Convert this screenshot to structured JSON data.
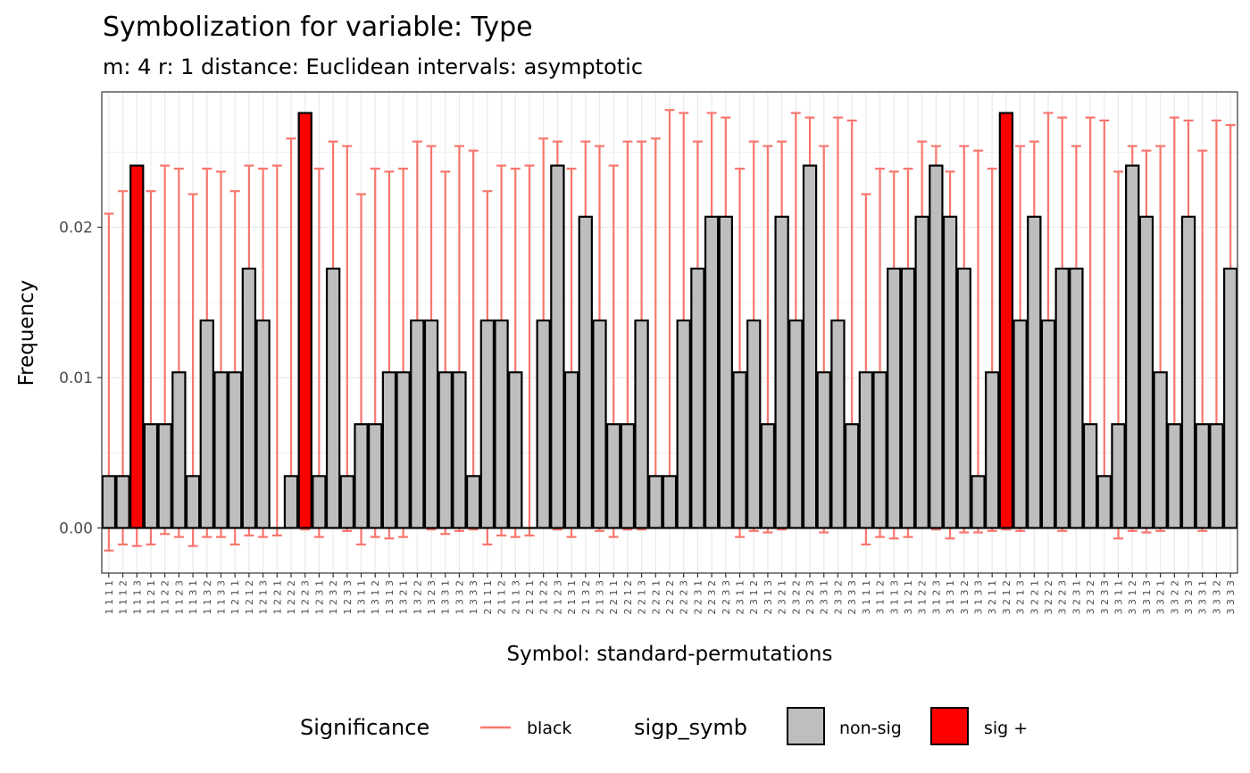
{
  "chart_data": {
    "type": "bar",
    "title": "Symbolization for variable: Type",
    "subtitle": "m: 4  r:  1  distance:  Euclidean  intervals:  asymptotic",
    "xlabel": "Symbol: standard-permutations",
    "ylabel": "Frequency",
    "ylim": [
      -0.003,
      0.029
    ],
    "yticks": [
      "0.00",
      "0.01",
      "0.02"
    ],
    "ytick_values": [
      0,
      0.01,
      0.02
    ],
    "grid": true,
    "legend_position": "bottom",
    "colors": {
      "bar_fill": "#bebebe",
      "sig_fill": "#ff0000",
      "bar_stroke": "#000000",
      "errorbar": "#f8766d"
    },
    "categories": [
      "1111",
      "1112",
      "1113",
      "1121",
      "1122",
      "1123",
      "1131",
      "1132",
      "1133",
      "1211",
      "1212",
      "1213",
      "1221",
      "1222",
      "1223",
      "1231",
      "1232",
      "1233",
      "1311",
      "1312",
      "1313",
      "1321",
      "1322",
      "1323",
      "1331",
      "1332",
      "1333",
      "2111",
      "2112",
      "2113",
      "2121",
      "2122",
      "2123",
      "2131",
      "2132",
      "2133",
      "2211",
      "2212",
      "2213",
      "2221",
      "2222",
      "2223",
      "2231",
      "2232",
      "2233",
      "2311",
      "2312",
      "2313",
      "2321",
      "2322",
      "2323",
      "2331",
      "2332",
      "2333",
      "3111",
      "3112",
      "3113",
      "3121",
      "3122",
      "3123",
      "3131",
      "3132",
      "3133",
      "3211",
      "3212",
      "3213",
      "3221",
      "3222",
      "3223",
      "3231",
      "3232",
      "3233",
      "3311",
      "3312",
      "3313",
      "3321",
      "3322",
      "3323",
      "3331",
      "3332",
      "3333"
    ],
    "values": [
      0.00345,
      0.00345,
      0.0241,
      0.0069,
      0.0069,
      0.01035,
      0.00345,
      0.0138,
      0.01035,
      0.01035,
      0.01725,
      0.0138,
      0,
      0.00345,
      0.0276,
      0.00345,
      0.01725,
      0.00345,
      0.0069,
      0.0069,
      0.01035,
      0.01035,
      0.0138,
      0.0138,
      0.01035,
      0.01035,
      0.00345,
      0.0138,
      0.0138,
      0.01035,
      0,
      0.0138,
      0.0241,
      0.01035,
      0.0207,
      0.0138,
      0.0069,
      0.0069,
      0.0138,
      0.00345,
      0.00345,
      0.0138,
      0.01725,
      0.0207,
      0.0207,
      0.01035,
      0.0138,
      0.0069,
      0.0207,
      0.0138,
      0.0241,
      0.01035,
      0.0138,
      0.0069,
      0.01035,
      0.01035,
      0.01725,
      0.01725,
      0.0207,
      0.0241,
      0.0207,
      0.01725,
      0.00345,
      0.01035,
      0.0276,
      0.0138,
      0.0207,
      0.0138,
      0.01725,
      0.01725,
      0.0069,
      0.00345,
      0.0069,
      0.0241,
      0.0207,
      0.01035,
      0.0069,
      0.0207,
      0.0069,
      0.0069,
      0.01725
    ],
    "lower": [
      -0.0015,
      -0.0011,
      -0.0012,
      -0.0011,
      -0.0004,
      -0.0006,
      -0.0012,
      -0.0006,
      -0.0006,
      -0.0011,
      -0.0005,
      -0.0006,
      -0.0005,
      0.0001,
      -0.0001,
      -0.0006,
      0,
      -0.0002,
      -0.0011,
      -0.0006,
      -0.0007,
      -0.0006,
      0,
      -0.0001,
      -0.0004,
      -0.0002,
      -0.0001,
      -0.0011,
      -0.0005,
      -0.0006,
      -0.0005,
      0.0001,
      -0.0001,
      -0.0006,
      0,
      -0.0002,
      -0.0006,
      -0.0001,
      -0.0001,
      0,
      0,
      0.0006,
      0.0006,
      0.0004,
      0.0004,
      -0.0006,
      -0.0002,
      -0.0003,
      -0.0001,
      0.0004,
      0.0004,
      -0.0003,
      0.0003,
      0.0003,
      -0.0011,
      -0.0006,
      -0.0007,
      -0.0006,
      0,
      -0.0001,
      -0.0007,
      -0.0003,
      -0.0003,
      -0.0002,
      -0.0001,
      -0.0002,
      0.0005,
      0.0004,
      -0.0002,
      0.0001,
      0.0001,
      0.0003,
      -0.0007,
      -0.0002,
      -0.0003,
      -0.0002,
      0.0004,
      0.0004,
      -0.0002,
      0.0003,
      0.0002
    ],
    "upper": [
      0.0209,
      0.0224,
      0.0222,
      0.0224,
      0.0241,
      0.0239,
      0.0222,
      0.0239,
      0.0237,
      0.0224,
      0.0241,
      0.0239,
      0.0241,
      0.0259,
      0.0257,
      0.0239,
      0.0257,
      0.0254,
      0.0222,
      0.0239,
      0.0237,
      0.0239,
      0.0257,
      0.0254,
      0.0237,
      0.0254,
      0.0251,
      0.0224,
      0.0241,
      0.0239,
      0.0241,
      0.0259,
      0.0257,
      0.0239,
      0.0257,
      0.0254,
      0.0241,
      0.0257,
      0.0257,
      0.0259,
      0.0278,
      0.0276,
      0.0257,
      0.0276,
      0.0273,
      0.0239,
      0.0257,
      0.0254,
      0.0257,
      0.0276,
      0.0273,
      0.0254,
      0.0273,
      0.0271,
      0.0222,
      0.0239,
      0.0237,
      0.0239,
      0.0257,
      0.0254,
      0.0237,
      0.0254,
      0.0251,
      0.0239,
      0.0257,
      0.0254,
      0.0257,
      0.0276,
      0.0273,
      0.0254,
      0.0273,
      0.0271,
      0.0237,
      0.0254,
      0.0251,
      0.0254,
      0.0273,
      0.0271,
      0.0251,
      0.0271,
      0.0268
    ],
    "sig_indices": [
      2,
      14,
      64
    ],
    "legend": {
      "errorbar_title": "Significance",
      "errorbar_item": "black",
      "fill_title": "sigp_symb",
      "fill_items": [
        "non-sig",
        "sig +"
      ]
    }
  }
}
